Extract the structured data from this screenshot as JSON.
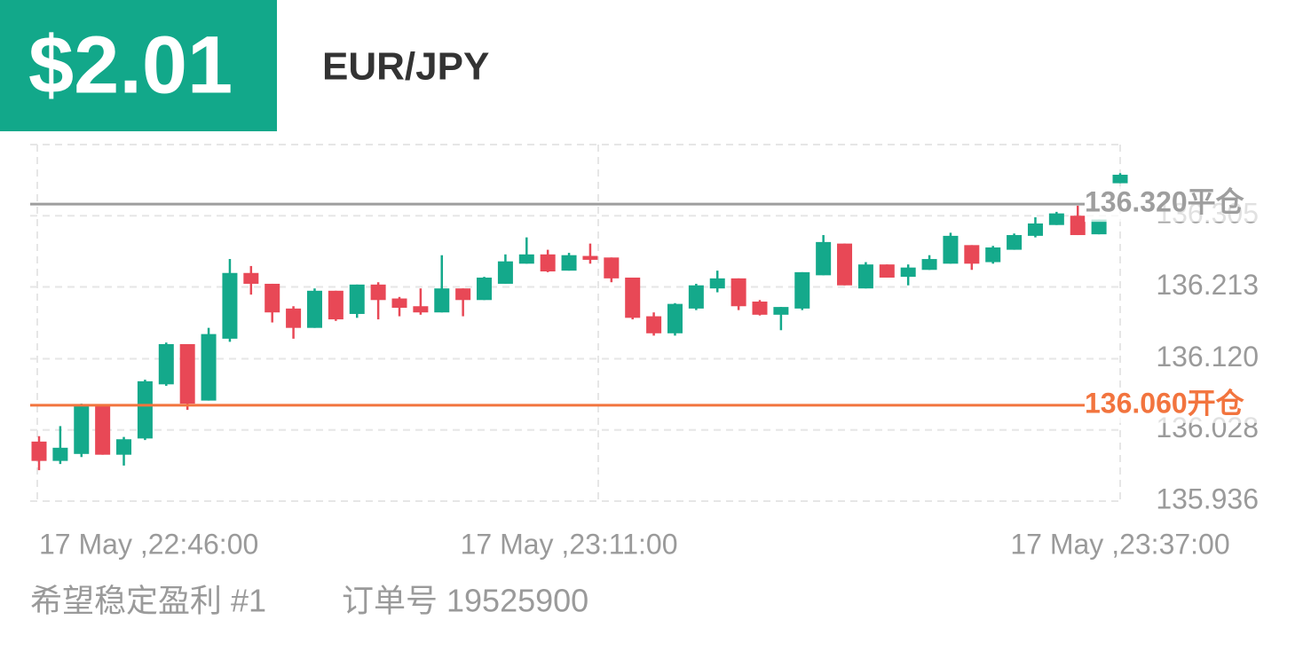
{
  "header": {
    "price": "$2.01",
    "symbol": "EUR/JPY"
  },
  "chart_data": {
    "type": "candlestick",
    "categories": [
      "17 May ,22:46:00",
      null,
      null,
      null,
      null,
      null,
      null,
      null,
      null,
      null,
      null,
      null,
      null,
      null,
      null,
      null,
      null,
      null,
      null,
      null,
      null,
      null,
      null,
      null,
      null,
      "17 May ,23:11:00",
      null,
      null,
      null,
      null,
      null,
      null,
      null,
      null,
      null,
      null,
      null,
      null,
      null,
      null,
      null,
      null,
      null,
      null,
      null,
      null,
      null,
      null,
      null,
      null,
      null,
      "17 May ,23:37:00"
    ],
    "open": [
      136.013,
      135.988,
      135.997,
      136.059,
      135.996,
      136.017,
      136.087,
      136.139,
      136.066,
      136.146,
      136.231,
      136.217,
      136.185,
      136.16,
      136.208,
      136.178,
      136.216,
      136.198,
      136.188,
      136.18,
      136.211,
      136.196,
      136.217,
      136.243,
      136.255,
      136.234,
      136.253,
      136.251,
      136.225,
      136.175,
      136.153,
      136.185,
      136.211,
      136.224,
      136.194,
      136.177,
      136.185,
      136.228,
      136.269,
      136.211,
      136.242,
      136.226,
      136.235,
      136.243,
      136.267,
      136.245,
      136.261,
      136.279,
      136.293,
      136.305,
      136.281,
      136.347
    ],
    "high": [
      136.02,
      136.033,
      136.062,
      136.059,
      136.019,
      136.093,
      136.141,
      136.139,
      136.16,
      136.249,
      136.24,
      136.217,
      136.188,
      136.211,
      136.208,
      136.216,
      136.219,
      136.2,
      136.211,
      136.254,
      136.211,
      136.226,
      136.255,
      136.277,
      136.261,
      136.257,
      136.269,
      136.251,
      136.225,
      136.18,
      136.192,
      136.217,
      136.234,
      136.224,
      136.196,
      136.187,
      136.232,
      136.28,
      136.269,
      136.245,
      136.242,
      136.242,
      136.254,
      136.283,
      136.267,
      136.266,
      136.282,
      136.303,
      136.31,
      136.318,
      136.3,
      136.36
    ],
    "low": [
      135.976,
      135.984,
      135.993,
      135.996,
      135.982,
      136.015,
      136.085,
      136.054,
      136.066,
      136.142,
      136.203,
      136.167,
      136.146,
      136.16,
      136.169,
      136.173,
      136.171,
      136.175,
      136.177,
      136.18,
      136.175,
      136.196,
      136.217,
      136.243,
      136.232,
      136.234,
      136.243,
      136.219,
      136.171,
      136.15,
      136.15,
      136.183,
      136.206,
      136.183,
      136.176,
      136.157,
      136.183,
      136.228,
      136.215,
      136.211,
      136.225,
      136.215,
      136.235,
      136.243,
      136.235,
      136.243,
      136.261,
      136.277,
      136.293,
      136.28,
      136.281,
      136.347
    ],
    "close": [
      135.988,
      136.005,
      136.059,
      135.996,
      136.016,
      136.091,
      136.139,
      136.062,
      136.152,
      136.231,
      136.217,
      136.18,
      136.16,
      136.208,
      136.171,
      136.216,
      136.196,
      136.186,
      136.18,
      136.211,
      136.196,
      136.225,
      136.246,
      136.255,
      136.233,
      136.254,
      136.248,
      136.224,
      136.173,
      136.153,
      136.191,
      136.215,
      136.224,
      136.188,
      136.177,
      136.187,
      136.232,
      136.271,
      136.215,
      136.242,
      136.225,
      136.238,
      136.249,
      136.279,
      136.243,
      136.264,
      136.28,
      136.295,
      136.308,
      136.28,
      136.3,
      136.358
    ],
    "up_color": "#14a98b",
    "down_color": "#e84856",
    "ylim": [
      135.936,
      136.397
    ],
    "yticks": [
      135.936,
      136.028,
      {
        "value": 136.12,
        "label": "136.120"
      },
      136.213,
      136.305
    ],
    "grid": true,
    "lines": [
      {
        "value": 136.32,
        "label": "136.320平仓",
        "color": "#9e9e9e"
      },
      {
        "value": 136.06,
        "label": "136.060开仓",
        "color": "#f2743e"
      }
    ]
  },
  "footer": {
    "account": "希望稳定盈利 #1",
    "order": "订单号 19525900"
  }
}
